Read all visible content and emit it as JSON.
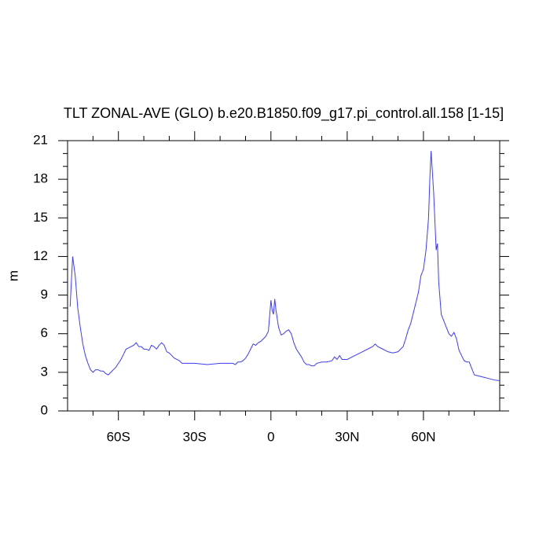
{
  "chart_data": {
    "type": "line",
    "title": "TLT ZONAL-AVE (GLO) b.e20.B1850.f09_g17.pi_control.all.158 [1-15]",
    "y_label": "m",
    "xlim": [
      -80,
      90
    ],
    "ylim": [
      0,
      21
    ],
    "xticks": [
      {
        "value": -60,
        "label": "60S"
      },
      {
        "value": -30,
        "label": "30S"
      },
      0,
      {
        "value": 30,
        "label": "30N"
      },
      {
        "value": 60,
        "label": "60N"
      }
    ],
    "xminor_ticks": [
      -70,
      -50,
      -40,
      -20,
      -10,
      10,
      20,
      40,
      50,
      70,
      80
    ],
    "yticks": [
      0,
      3,
      6,
      9,
      12,
      15,
      18,
      21
    ],
    "yminor_ticks": [
      1,
      2,
      4,
      5,
      7,
      8,
      10,
      11,
      13,
      14,
      16,
      17,
      19,
      20
    ],
    "series": [
      {
        "color": "#3c3cff",
        "x": [
          -79,
          -78,
          -77,
          -76,
          -75,
          -74,
          -73,
          -72,
          -71,
          -70,
          -69,
          -68,
          -67,
          -66,
          -65,
          -64,
          -63,
          -62,
          -61,
          -60,
          -59,
          -58,
          -57,
          -56,
          -55,
          -54,
          -53,
          -52,
          -51,
          -50,
          -49,
          -48,
          -47,
          -46,
          -45,
          -44,
          -43,
          -42,
          -41,
          -40,
          -39,
          -38,
          -37,
          -36,
          -35,
          -30,
          -25,
          -20,
          -15,
          -14,
          -13,
          -12,
          -11,
          -10,
          -9,
          -8,
          -7,
          -6,
          -5,
          -4,
          -3,
          -2,
          -1,
          0,
          0.5,
          1,
          1.5,
          2,
          3,
          4,
          5,
          6,
          7,
          8,
          9,
          10,
          11,
          12,
          13,
          14,
          15,
          16,
          17,
          18,
          20,
          22,
          24,
          25,
          26,
          27,
          28,
          30,
          32,
          34,
          36,
          38,
          40,
          41,
          42,
          44,
          46,
          48,
          50,
          52,
          53,
          54,
          55,
          56,
          57,
          58,
          59,
          60,
          61,
          62,
          62.5,
          63,
          64,
          65,
          65.5,
          66,
          67,
          68,
          69,
          70,
          71,
          72,
          73,
          74,
          75,
          76,
          77,
          78,
          79,
          80,
          82,
          84,
          86,
          88,
          90
        ],
        "values": [
          8.1,
          12.0,
          10.5,
          8.0,
          6.5,
          5.2,
          4.3,
          3.7,
          3.2,
          3.0,
          3.2,
          3.2,
          3.1,
          3.1,
          2.9,
          2.8,
          3.0,
          3.2,
          3.4,
          3.7,
          4.0,
          4.4,
          4.8,
          4.9,
          5.0,
          5.1,
          5.3,
          5.0,
          5.0,
          4.8,
          4.8,
          4.7,
          5.1,
          5.0,
          4.8,
          5.1,
          5.3,
          5.1,
          4.6,
          4.5,
          4.3,
          4.1,
          4.0,
          3.9,
          3.7,
          3.7,
          3.6,
          3.7,
          3.7,
          3.6,
          3.8,
          3.8,
          3.9,
          4.1,
          4.4,
          4.8,
          5.2,
          5.1,
          5.3,
          5.4,
          5.6,
          5.8,
          6.2,
          8.6,
          7.8,
          7.5,
          8.7,
          7.8,
          6.5,
          5.9,
          6.0,
          6.2,
          6.3,
          6.0,
          5.3,
          4.8,
          4.5,
          4.2,
          3.8,
          3.6,
          3.6,
          3.5,
          3.5,
          3.7,
          3.8,
          3.8,
          3.9,
          4.2,
          4.0,
          4.3,
          4.0,
          4.0,
          4.2,
          4.4,
          4.6,
          4.8,
          5.0,
          5.2,
          5.0,
          4.8,
          4.6,
          4.5,
          4.6,
          5.0,
          5.6,
          6.3,
          6.8,
          7.6,
          8.4,
          9.2,
          10.5,
          11.0,
          12.5,
          15.0,
          18.0,
          20.2,
          17.0,
          12.5,
          13.0,
          10.0,
          7.5,
          7.0,
          6.5,
          6.0,
          5.8,
          6.1,
          5.6,
          4.7,
          4.3,
          3.9,
          3.8,
          3.8,
          3.3,
          2.8,
          2.7,
          2.6,
          2.5,
          2.4,
          2.35
        ]
      }
    ]
  }
}
